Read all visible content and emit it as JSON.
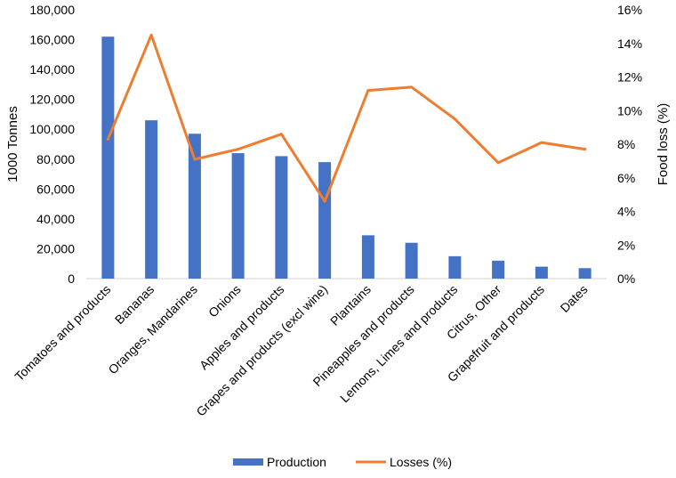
{
  "chart_data": {
    "type": "bar",
    "categories": [
      "Tomatoes and products",
      "Bananas",
      "Oranges, Mandarines",
      "Onions",
      "Apples and products",
      "Grapes and products (excl wine)",
      "Plantains",
      "Pineapples and products",
      "Lemons, Limes and products",
      "Citrus, Other",
      "Grapefruit and products",
      "Dates"
    ],
    "series": [
      {
        "name": "Production",
        "type": "bar",
        "axis": "left",
        "color": "#4472C4",
        "values": [
          162000,
          106000,
          97000,
          84000,
          82000,
          78000,
          29000,
          24000,
          15000,
          12000,
          8000,
          7000
        ]
      },
      {
        "name": "Losses (%)",
        "type": "line",
        "axis": "right",
        "color": "#ED7D31",
        "values": [
          8.3,
          14.5,
          7.1,
          7.7,
          8.6,
          4.6,
          11.2,
          11.4,
          9.5,
          6.9,
          8.1,
          7.7
        ]
      }
    ],
    "ylabel": "1000 Tonnes",
    "ylim": [
      0,
      180000
    ],
    "yticks": [
      "0",
      "20,000",
      "40,000",
      "60,000",
      "80,000",
      "100,000",
      "120,000",
      "140,000",
      "160,000",
      "180,000"
    ],
    "y2label": "Food loss (%)",
    "y2lim": [
      0,
      16
    ],
    "y2ticks": [
      "0%",
      "2%",
      "4%",
      "6%",
      "8%",
      "10%",
      "12%",
      "14%",
      "16%"
    ],
    "grid": false,
    "legend_position": "bottom"
  }
}
